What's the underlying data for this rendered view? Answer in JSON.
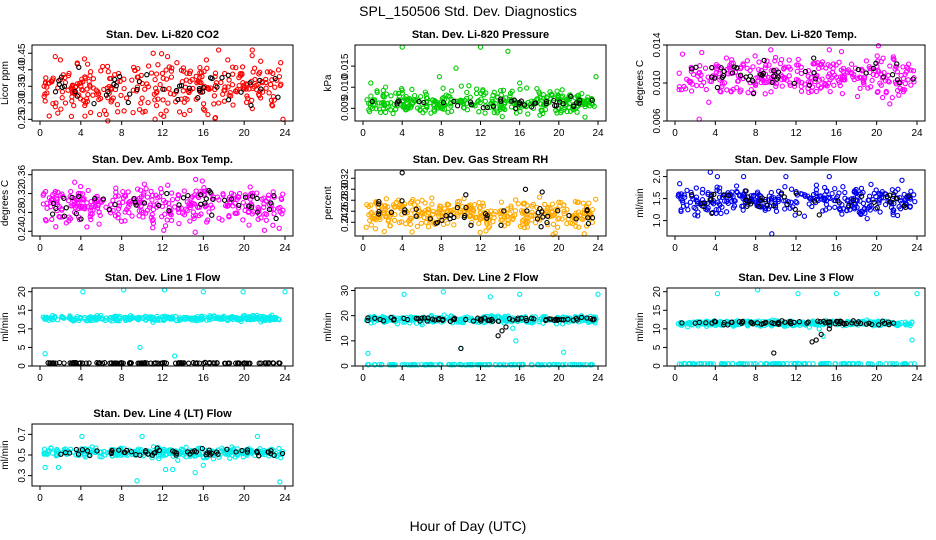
{
  "figure": {
    "title": "SPL_150506  Std. Dev. Diagnostics",
    "xlabel": "Hour of Day (UTC)"
  },
  "chart_data": [
    {
      "type": "scatter",
      "title": "Stan. Dev. Li-820 CO2",
      "ylabel": "Licor ppm",
      "xlim": [
        0,
        24
      ],
      "xticks": [
        0,
        4,
        8,
        12,
        16,
        20,
        24
      ],
      "ylim": [
        0.245,
        0.475
      ],
      "yticks": [
        0.25,
        0.3,
        0.35,
        0.4,
        0.45
      ],
      "ytick_labels": [
        "0.25",
        "0.30",
        "0.35",
        "0.40",
        "0.45"
      ],
      "series": [
        {
          "color": "#ff0000",
          "role": "background",
          "center": 0.345,
          "spread": 0.045,
          "count": 320
        },
        {
          "color": "#000000",
          "role": "overlay",
          "center": 0.345,
          "spread": 0.03,
          "count": 45
        },
        {
          "color": "#ff0000",
          "role": "outliers",
          "x": [
            1.5,
            2.0,
            12.5,
            16.3,
            17.5,
            18.4,
            20.8,
            23.8,
            0.9
          ],
          "y": [
            0.44,
            0.43,
            0.44,
            0.43,
            0.46,
            0.43,
            0.46,
            0.25,
            0.26
          ]
        }
      ]
    },
    {
      "type": "scatter",
      "title": "Stan. Dev. Li-820 Pressure",
      "ylabel": "kPa",
      "xlim": [
        0,
        24
      ],
      "xticks": [
        0,
        4,
        8,
        12,
        16,
        20,
        24
      ],
      "ylim": [
        0.002,
        0.02
      ],
      "yticks": [
        0.005,
        0.01,
        0.015
      ],
      "ytick_labels": [
        "0.005",
        "0.010",
        "0.015"
      ],
      "series": [
        {
          "color": "#00cc00",
          "role": "background",
          "center": 0.0065,
          "spread": 0.0016,
          "count": 340
        },
        {
          "color": "#000000",
          "role": "overlay",
          "center": 0.0065,
          "spread": 0.0008,
          "count": 40
        },
        {
          "color": "#00cc00",
          "role": "outliers",
          "x": [
            0.8,
            4.0,
            7.8,
            9.5,
            12.0,
            14.8,
            16.0,
            23.8,
            20.2
          ],
          "y": [
            0.011,
            0.0195,
            0.0125,
            0.0145,
            0.0195,
            0.0185,
            0.011,
            0.0125,
            0.004
          ]
        }
      ]
    },
    {
      "type": "scatter",
      "title": "Stan. Dev. Li-820 Temp.",
      "ylabel": "degrees C",
      "xlim": [
        0,
        24
      ],
      "xticks": [
        0,
        4,
        8,
        12,
        16,
        20,
        24
      ],
      "ylim": [
        0.006,
        0.014
      ],
      "yticks": [
        0.006,
        0.01,
        0.014
      ],
      "ytick_labels": [
        "0.006",
        "0.010",
        "0.014"
      ],
      "series": [
        {
          "color": "#ff00ff",
          "role": "background",
          "center": 0.0107,
          "spread": 0.0012,
          "count": 320
        },
        {
          "color": "#000000",
          "role": "overlay",
          "center": 0.0108,
          "spread": 0.0008,
          "count": 45
        },
        {
          "color": "#ff00ff",
          "role": "outliers",
          "x": [
            2.4,
            9.5,
            15.3,
            21.3
          ],
          "y": [
            0.0062,
            0.0135,
            0.0135,
            0.0078
          ]
        }
      ]
    },
    {
      "type": "scatter",
      "title": "Stan. Dev. Amb. Box Temp.",
      "ylabel": "degrees C",
      "xlim": [
        0,
        24
      ],
      "xticks": [
        0,
        4,
        8,
        12,
        16,
        20,
        24
      ],
      "ylim": [
        0.23,
        0.37
      ],
      "yticks": [
        0.24,
        0.28,
        0.32,
        0.36
      ],
      "ytick_labels": [
        "0.24",
        "0.28",
        "0.32",
        "0.36"
      ],
      "series": [
        {
          "color": "#ff00ff",
          "role": "background",
          "center": 0.295,
          "spread": 0.025,
          "count": 340
        },
        {
          "color": "#000000",
          "role": "overlay",
          "center": 0.298,
          "spread": 0.02,
          "count": 45
        }
      ]
    },
    {
      "type": "scatter",
      "title": "Stan. Dev. Gas Stream RH",
      "ylabel": "percent",
      "xlim": [
        0,
        24
      ],
      "xticks": [
        0,
        4,
        8,
        12,
        16,
        20,
        24
      ],
      "ylim": [
        0.215,
        0.335
      ],
      "yticks": [
        0.24,
        0.26,
        0.28,
        0.3,
        0.32
      ],
      "ytick_labels": [
        "0.24",
        "0.26",
        "0.28",
        "0.30",
        "0.32"
      ],
      "series": [
        {
          "color": "#ffaa00",
          "role": "background",
          "center": 0.254,
          "spread": 0.015,
          "count": 360
        },
        {
          "color": "#000000",
          "role": "overlay",
          "center": 0.255,
          "spread": 0.012,
          "count": 45
        },
        {
          "color": "#000000",
          "role": "outliers",
          "x": [
            4.0,
            10.5,
            16.6,
            18.3
          ],
          "y": [
            0.33,
            0.29,
            0.3,
            0.295
          ]
        }
      ]
    },
    {
      "type": "scatter",
      "title": "Stan. Dev. Sample Flow",
      "ylabel": "ml/min",
      "xlim": [
        0,
        24
      ],
      "xticks": [
        0,
        4,
        8,
        12,
        16,
        20,
        24
      ],
      "ylim": [
        0.65,
        2.15
      ],
      "yticks": [
        1.0,
        1.5,
        2.0
      ],
      "ytick_labels": [
        "1.0",
        "1.5",
        "2.0"
      ],
      "series": [
        {
          "color": "#0000ee",
          "role": "background",
          "center": 1.45,
          "spread": 0.18,
          "count": 340
        },
        {
          "color": "#000000",
          "role": "overlay",
          "center": 1.45,
          "spread": 0.15,
          "count": 45
        },
        {
          "color": "#0000ee",
          "role": "outliers",
          "x": [
            3.5,
            4.2,
            6.8,
            9.6,
            11.0,
            15.3
          ],
          "y": [
            2.1,
            2.0,
            2.0,
            0.7,
            2.0,
            2.0
          ]
        }
      ]
    },
    {
      "type": "scatter",
      "title": "Stan. Dev. Line 1 Flow",
      "ylabel": "ml/min",
      "xlim": [
        0,
        24
      ],
      "xticks": [
        0,
        4,
        8,
        12,
        16,
        20,
        24
      ],
      "ylim": [
        0,
        21
      ],
      "yticks": [
        0,
        5,
        10,
        15,
        20
      ],
      "ytick_labels": [
        "0",
        "5",
        "10",
        "15",
        "20"
      ],
      "series": [
        {
          "color": "#00eeee",
          "role": "background",
          "center": 12.8,
          "spread": 0.4,
          "count": 300
        },
        {
          "color": "#000000",
          "role": "baseline",
          "center": 0.8,
          "spread": 0.1,
          "count": 120
        },
        {
          "color": "#00eeee",
          "role": "outliers",
          "x": [
            0.5,
            4.2,
            8.2,
            12.2,
            13.2,
            16.0,
            19.9,
            24.0,
            9.8
          ],
          "y": [
            3.3,
            20.0,
            20.5,
            20.5,
            2.7,
            20.0,
            20.0,
            20.0,
            5.0
          ]
        }
      ]
    },
    {
      "type": "scatter",
      "title": "Stan. Dev. Line 2 Flow",
      "ylabel": "ml/min",
      "xlim": [
        0,
        24
      ],
      "xticks": [
        0,
        4,
        8,
        12,
        16,
        20,
        24
      ],
      "ylim": [
        0,
        31
      ],
      "yticks": [
        0,
        10,
        20,
        30
      ],
      "ytick_labels": [
        "0",
        "10",
        "20",
        "30"
      ],
      "series": [
        {
          "color": "#00eeee",
          "role": "background",
          "center": 18.5,
          "spread": 0.8,
          "count": 320
        },
        {
          "color": "#000000",
          "role": "overlay",
          "center": 18.5,
          "spread": 0.5,
          "count": 70
        },
        {
          "color": "#00eeee",
          "role": "baseline",
          "center": 0.5,
          "spread": 0.1,
          "count": 120
        },
        {
          "color": "#00eeee",
          "role": "outliers",
          "x": [
            0.5,
            4.2,
            8.2,
            13.0,
            14.5,
            15.3,
            15.6,
            16.0,
            24.0,
            10.0,
            20.5
          ],
          "y": [
            5.0,
            28.5,
            29.5,
            27.5,
            18.0,
            15.0,
            10.0,
            28.5,
            28.5,
            7.0,
            5.5
          ]
        },
        {
          "color": "#000000",
          "role": "outliers",
          "x": [
            10.0,
            13.8,
            14.2,
            14.6
          ],
          "y": [
            7.0,
            12.0,
            14.0,
            15.5
          ]
        }
      ]
    },
    {
      "type": "scatter",
      "title": "Stan. Dev. Line 3 Flow",
      "ylabel": "ml/min",
      "xlim": [
        0,
        24
      ],
      "xticks": [
        0,
        4,
        8,
        12,
        16,
        20,
        24
      ],
      "ylim": [
        0,
        21
      ],
      "yticks": [
        0,
        5,
        10,
        15,
        20
      ],
      "ytick_labels": [
        "0",
        "5",
        "10",
        "15",
        "20"
      ],
      "series": [
        {
          "color": "#00eeee",
          "role": "background",
          "center": 11.5,
          "spread": 0.4,
          "count": 300
        },
        {
          "color": "#000000",
          "role": "overlay",
          "center": 11.6,
          "spread": 0.3,
          "count": 70
        },
        {
          "color": "#00eeee",
          "role": "baseline",
          "center": 0.6,
          "spread": 0.1,
          "count": 120
        },
        {
          "color": "#00eeee",
          "role": "outliers",
          "x": [
            4.2,
            8.2,
            12.2,
            16.0,
            20.0,
            24.0,
            14.3,
            14.7,
            23.5
          ],
          "y": [
            19.5,
            20.5,
            19.5,
            19.5,
            19.5,
            19.5,
            10.0,
            8.0,
            7.0
          ]
        },
        {
          "color": "#000000",
          "role": "outliers",
          "x": [
            9.8,
            13.6,
            14.0,
            14.5,
            15.3
          ],
          "y": [
            3.5,
            6.5,
            7.0,
            8.5,
            10.0
          ]
        }
      ]
    },
    {
      "type": "scatter",
      "title": "Stan. Dev. Line 4 (LT) Flow",
      "ylabel": "ml/min",
      "xlim": [
        0,
        24
      ],
      "xticks": [
        0,
        4,
        8,
        12,
        16,
        20,
        24
      ],
      "ylim": [
        0.2,
        0.8
      ],
      "yticks": [
        0.3,
        0.5,
        0.7
      ],
      "ytick_labels": [
        "0.3",
        "0.5",
        "0.7"
      ],
      "series": [
        {
          "color": "#00eeee",
          "role": "background",
          "center": 0.525,
          "spread": 0.025,
          "count": 300
        },
        {
          "color": "#000000",
          "role": "overlay",
          "center": 0.525,
          "spread": 0.02,
          "count": 60
        },
        {
          "color": "#00eeee",
          "role": "outliers",
          "x": [
            0.5,
            1.8,
            4.1,
            9.5,
            10.0,
            12.3,
            13.0,
            13.5,
            15.2,
            16.0,
            21.3,
            23.5
          ],
          "y": [
            0.38,
            0.38,
            0.68,
            0.25,
            0.68,
            0.36,
            0.36,
            0.45,
            0.33,
            0.4,
            0.68,
            0.24
          ]
        }
      ]
    }
  ]
}
